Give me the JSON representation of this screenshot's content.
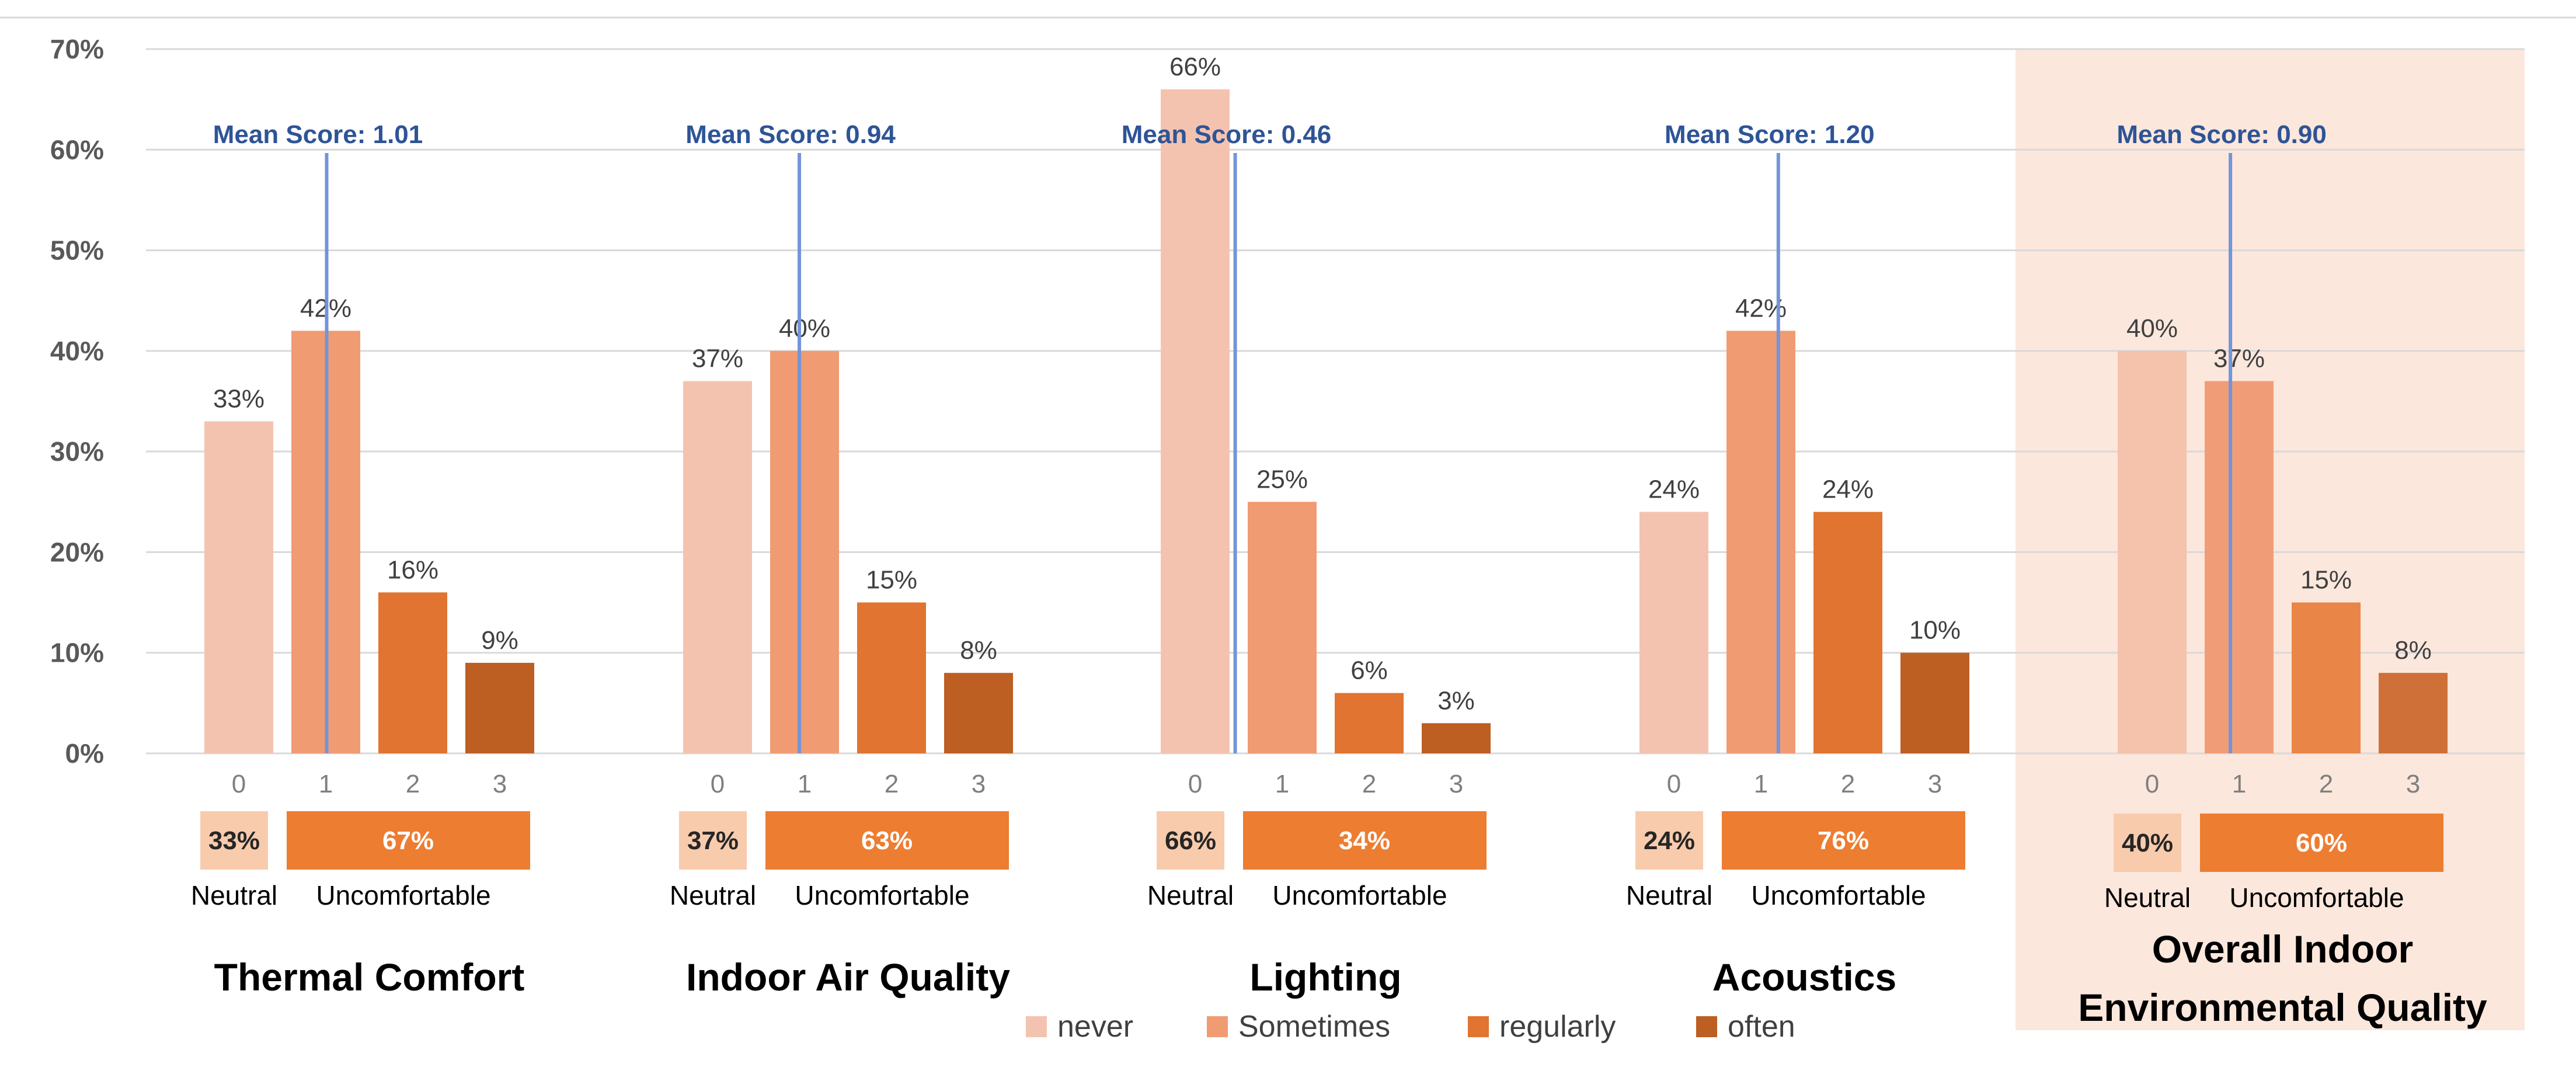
{
  "chart_data": {
    "type": "bar",
    "ylim": [
      0,
      70
    ],
    "yticks": [
      "0%",
      "10%",
      "20%",
      "30%",
      "40%",
      "50%",
      "60%",
      "70%"
    ],
    "categories": [
      "0",
      "1",
      "2",
      "3"
    ],
    "groups": [
      {
        "title": "Thermal Comfort",
        "values": [
          33,
          42,
          16,
          9
        ],
        "labels": [
          "33%",
          "42%",
          "16%",
          "9%"
        ],
        "mean_label": "Mean Score: 1.01",
        "mean": 1.01,
        "neutral_pct": "33%",
        "uncomfortable_pct": "67%"
      },
      {
        "title": "Indoor Air Quality",
        "values": [
          37,
          40,
          15,
          8
        ],
        "labels": [
          "37%",
          "40%",
          "15%",
          "8%"
        ],
        "mean_label": "Mean Score: 0.94",
        "mean": 0.94,
        "neutral_pct": "37%",
        "uncomfortable_pct": "63%"
      },
      {
        "title": "Lighting",
        "values": [
          66,
          25,
          6,
          3
        ],
        "labels": [
          "66%",
          "25%",
          "6%",
          "3%"
        ],
        "mean_label": "Mean Score: 0.46",
        "mean": 0.46,
        "neutral_pct": "66%",
        "uncomfortable_pct": "34%"
      },
      {
        "title": "Acoustics",
        "values": [
          24,
          42,
          24,
          10
        ],
        "labels": [
          "24%",
          "42%",
          "24%",
          "10%"
        ],
        "mean_label": "Mean Score: 1.20",
        "mean": 1.2,
        "neutral_pct": "24%",
        "uncomfortable_pct": "76%"
      },
      {
        "title_lines": [
          "Overall Indoor",
          "Environmental Quality"
        ],
        "values": [
          40,
          37,
          15,
          8
        ],
        "labels": [
          "40%",
          "37%",
          "15%",
          "8%"
        ],
        "mean_label": "Mean Score: 0.90",
        "mean": 0.9,
        "neutral_pct": "40%",
        "uncomfortable_pct": "60%",
        "highlighted": true
      }
    ],
    "summary_labels": {
      "neutral": "Neutral",
      "uncomfortable": "Uncomfortable"
    },
    "legend": [
      "never",
      "Sometimes",
      "regularly",
      "often"
    ],
    "legend_position": "bottom",
    "colors": {
      "series": [
        "#f4c3b0",
        "#f09b72",
        "#e07430",
        "#bd5e23"
      ],
      "highlight_series": [
        "#f5c2ab",
        "#f09d77",
        "#ea8548",
        "#cf7038"
      ],
      "mean_line": "#7394d9",
      "mean_text": "#2e5496",
      "box_neutral": "#f8cbad",
      "box_uncomfortable": "#ed7d31",
      "highlight_bg": "#fce7dc",
      "grid": "#d9d9d9",
      "axis_text": "#595959"
    },
    "grid": true
  }
}
